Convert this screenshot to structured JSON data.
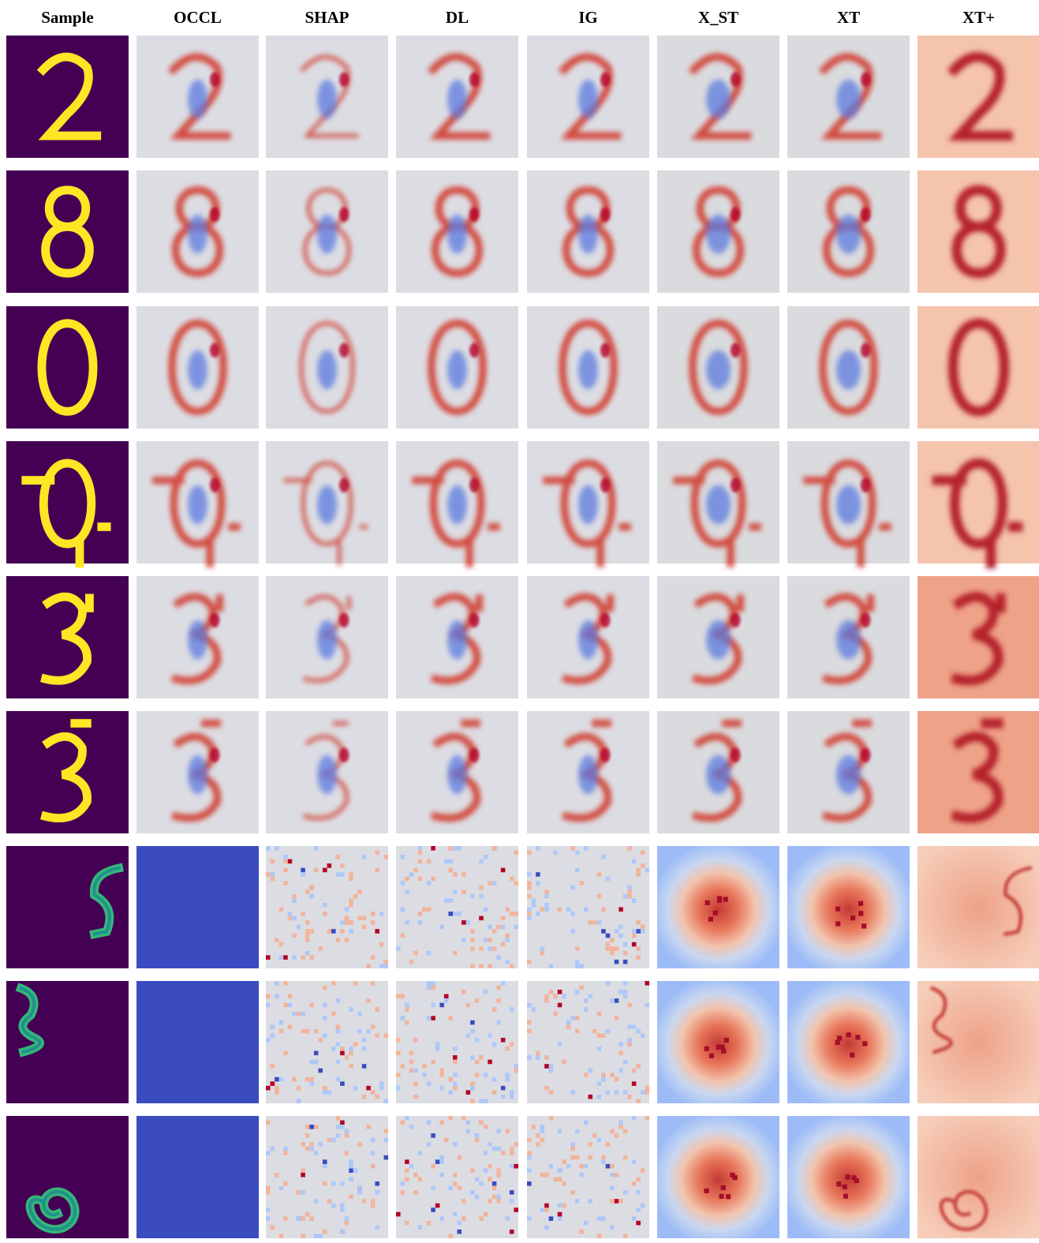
{
  "columns": [
    "Sample",
    "OCCL",
    "SHAP",
    "DL",
    "IG",
    "X_ST",
    "XT",
    "XT+"
  ]
}
